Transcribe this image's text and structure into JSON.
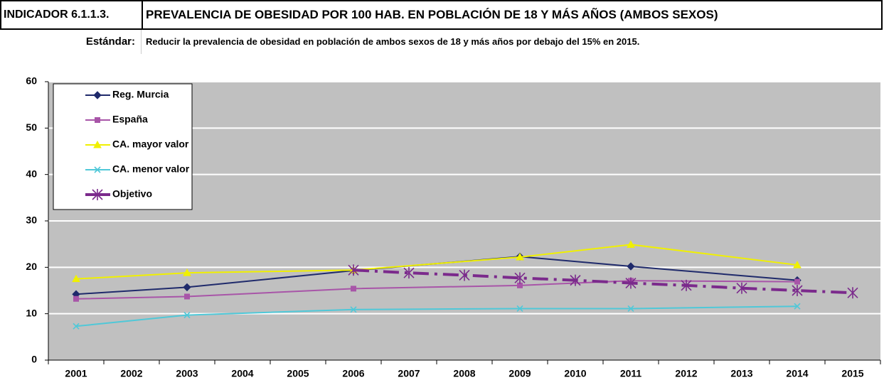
{
  "header": {
    "indicator": "INDICADOR 6.1.1.3.",
    "title": "PREVALENCIA DE OBESIDAD POR 100 HAB. EN POBLACIÓN DE 18 Y MÁS AÑOS (AMBOS SEXOS)",
    "standard_label": "Estándar:",
    "standard_text": "Reducir la prevalencia de obesidad en población de ambos sexos de 18  y más años por debajo del 15% en 2015."
  },
  "chart_data": {
    "type": "line",
    "xlim": [
      2000.5,
      2015.5
    ],
    "xticks": [
      2001,
      2002,
      2003,
      2004,
      2005,
      2006,
      2007,
      2008,
      2009,
      2010,
      2011,
      2012,
      2013,
      2014,
      2015
    ],
    "ylim": [
      0,
      60
    ],
    "yticks": [
      0,
      10,
      20,
      30,
      40,
      50,
      60
    ],
    "grid": true,
    "legend": "top-left",
    "series": [
      {
        "name": "Reg. Murcia",
        "color": "#1f2a6b",
        "marker": "diamond",
        "dash": "solid",
        "x": [
          2001,
          2003,
          2006,
          2009,
          2011,
          2014
        ],
        "values": [
          14.2,
          15.7,
          19.3,
          22.3,
          20.2,
          17.2
        ]
      },
      {
        "name": "España",
        "color": "#a855a8",
        "marker": "square",
        "dash": "solid",
        "x": [
          2001,
          2003,
          2006,
          2009,
          2011,
          2014
        ],
        "values": [
          13.2,
          13.7,
          15.4,
          16.1,
          17.1,
          16.9
        ]
      },
      {
        "name": "CA. mayor valor",
        "color": "#f0f000",
        "marker": "triangle",
        "dash": "solid",
        "x": [
          2001,
          2003,
          2006,
          2009,
          2011,
          2014
        ],
        "values": [
          17.5,
          18.8,
          19.4,
          22.2,
          24.9,
          20.5
        ]
      },
      {
        "name": "CA. menor valor",
        "color": "#4fc8d8",
        "marker": "x",
        "dash": "solid",
        "x": [
          2001,
          2003,
          2006,
          2009,
          2011,
          2014
        ],
        "values": [
          7.3,
          9.7,
          10.9,
          11.1,
          11.1,
          11.6
        ]
      },
      {
        "name": "Objetivo",
        "color": "#7b2a8c",
        "marker": "asterisk",
        "dash": "dashdot",
        "x": [
          2006,
          2007,
          2008,
          2009,
          2010,
          2011,
          2012,
          2013,
          2014,
          2015
        ],
        "values": [
          19.4,
          18.8,
          18.3,
          17.7,
          17.2,
          16.6,
          16.1,
          15.5,
          15.0,
          14.5
        ]
      }
    ]
  }
}
